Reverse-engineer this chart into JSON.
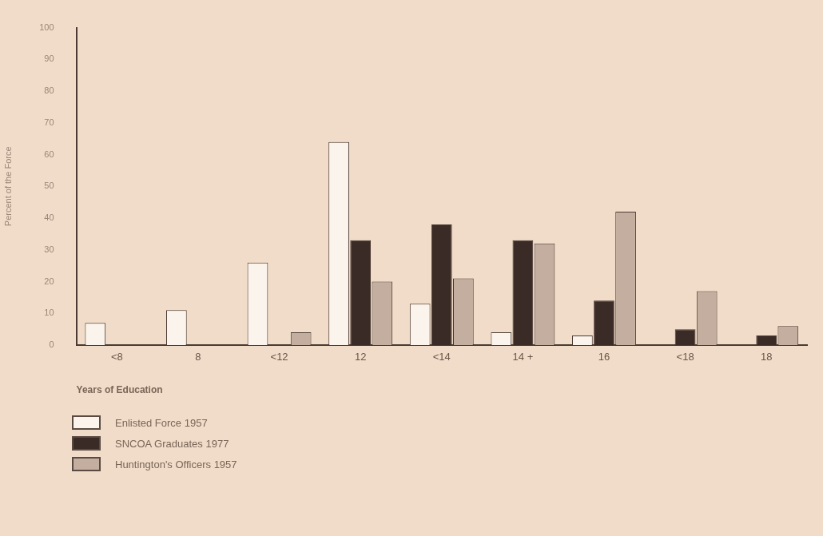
{
  "chart_data": {
    "type": "bar",
    "categories": [
      "<8",
      "8",
      "<12",
      "12",
      "<14",
      "14 +",
      "16",
      "<18",
      "18"
    ],
    "series": [
      {
        "name": "Enlisted Force 1957",
        "color": "#fbf4ec",
        "values": [
          7,
          11,
          26,
          64,
          13,
          4,
          3,
          null,
          null
        ]
      },
      {
        "name": "SNCOA Graduates 1977",
        "color": "#3a2b26",
        "values": [
          null,
          null,
          null,
          33,
          38,
          33,
          14,
          5,
          3
        ]
      },
      {
        "name": "Huntington's Officers 1957",
        "color": "#c4ae9f",
        "values": [
          null,
          null,
          4,
          20,
          21,
          32,
          42,
          17,
          6
        ]
      }
    ],
    "xlabel": "Years of Education",
    "ylabel": "Percent of the Force",
    "ylim": [
      0,
      100
    ],
    "yticks": [
      0,
      10,
      20,
      30,
      40,
      50,
      60,
      70,
      80,
      90,
      100
    ],
    "grid": false,
    "legend": "bottom left"
  }
}
